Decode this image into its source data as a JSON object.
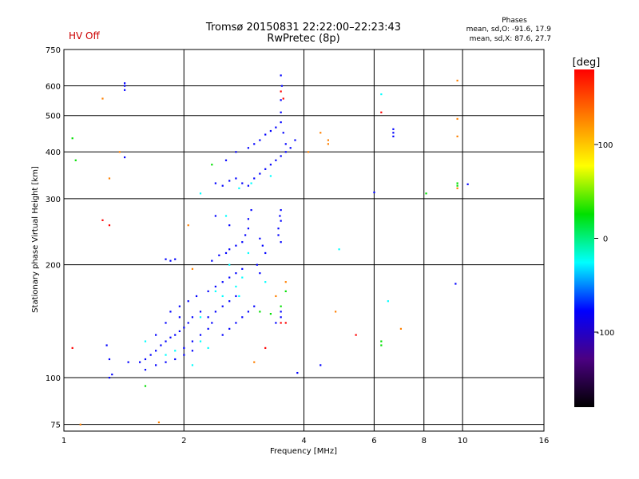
{
  "header": {
    "title_line1": "Tromsø 20150831 22:22:00–22:23:43",
    "title_line2": "RwPretec (8p)",
    "hv_status": "HV Off",
    "stats_title": "Phases",
    "stats_o": "mean, sd,O: -91.6, 17.9",
    "stats_x": "mean, sd,X:  87.6, 27.7"
  },
  "chart_data": {
    "type": "scatter",
    "xlabel": "Frequency [MHz]",
    "ylabel": "Stationary phase Virtual Height [km]",
    "xscale": "log",
    "yscale": "log",
    "xlim": [
      1,
      16
    ],
    "ylim": [
      72,
      750
    ],
    "x_ticks": [
      1,
      2,
      4,
      6,
      8,
      10,
      16
    ],
    "y_ticks": [
      75,
      100,
      200,
      300,
      400,
      500,
      600,
      750
    ],
    "grid": true,
    "colorbar": {
      "label": "[deg]",
      "range": [
        -180,
        180
      ],
      "ticks": [
        100,
        0,
        -100
      ],
      "colors": [
        "#ff0000",
        "#ff8000",
        "#ffff00",
        "#00e000",
        "#00ffff",
        "#0000ff",
        "#4b0082",
        "#000000"
      ]
    },
    "series": [
      {
        "points": [
          [
            1.3,
            112
          ],
          [
            1.45,
            110
          ],
          [
            1.55,
            110
          ],
          [
            1.6,
            112
          ],
          [
            1.65,
            115
          ],
          [
            1.7,
            118
          ],
          [
            1.75,
            122
          ],
          [
            1.8,
            125
          ],
          [
            1.85,
            128
          ],
          [
            1.9,
            130
          ],
          [
            1.95,
            133
          ],
          [
            2.0,
            136
          ],
          [
            2.05,
            140
          ],
          [
            2.1,
            145
          ],
          [
            1.6,
            105
          ],
          [
            1.7,
            108
          ],
          [
            1.8,
            110
          ],
          [
            1.9,
            112
          ],
          [
            2.0,
            115
          ],
          [
            2.1,
            118
          ],
          [
            1.85,
            150
          ],
          [
            1.95,
            155
          ],
          [
            2.05,
            160
          ],
          [
            2.15,
            165
          ],
          [
            2.2,
            150
          ],
          [
            2.3,
            145
          ],
          [
            2.4,
            150
          ],
          [
            2.5,
            155
          ],
          [
            2.6,
            160
          ],
          [
            2.7,
            165
          ],
          [
            2.3,
            170
          ],
          [
            2.4,
            175
          ],
          [
            2.5,
            180
          ],
          [
            2.6,
            185
          ],
          [
            2.7,
            190
          ],
          [
            2.8,
            195
          ],
          [
            2.5,
            130
          ],
          [
            2.6,
            135
          ],
          [
            2.7,
            140
          ],
          [
            2.8,
            145
          ],
          [
            2.9,
            150
          ],
          [
            3.0,
            155
          ],
          [
            1.7,
            130
          ],
          [
            1.8,
            140
          ],
          [
            1.95,
            145
          ],
          [
            2.0,
            120
          ],
          [
            2.1,
            125
          ],
          [
            2.2,
            130
          ],
          [
            2.3,
            135
          ],
          [
            2.35,
            140
          ],
          [
            1.8,
            207
          ],
          [
            1.85,
            205
          ],
          [
            1.9,
            207
          ],
          [
            2.35,
            205
          ],
          [
            2.45,
            212
          ],
          [
            2.55,
            215
          ],
          [
            2.6,
            220
          ],
          [
            2.7,
            225
          ],
          [
            2.8,
            230
          ],
          [
            2.85,
            240
          ],
          [
            2.9,
            250
          ],
          [
            2.9,
            265
          ],
          [
            2.95,
            280
          ],
          [
            3.1,
            235
          ],
          [
            3.15,
            225
          ],
          [
            3.2,
            215
          ],
          [
            2.4,
            270
          ],
          [
            2.6,
            255
          ],
          [
            3.05,
            200
          ],
          [
            3.1,
            190
          ],
          [
            2.4,
            330
          ],
          [
            2.5,
            325
          ],
          [
            2.6,
            335
          ],
          [
            2.7,
            340
          ],
          [
            2.8,
            330
          ],
          [
            2.9,
            325
          ],
          [
            3.0,
            340
          ],
          [
            3.1,
            350
          ],
          [
            3.2,
            360
          ],
          [
            3.3,
            370
          ],
          [
            3.4,
            380
          ],
          [
            3.5,
            390
          ],
          [
            3.6,
            400
          ],
          [
            3.6,
            420
          ],
          [
            3.55,
            450
          ],
          [
            3.5,
            480
          ],
          [
            3.5,
            510
          ],
          [
            3.5,
            550
          ],
          [
            3.52,
            600
          ],
          [
            3.5,
            640
          ],
          [
            2.55,
            380
          ],
          [
            2.7,
            400
          ],
          [
            2.9,
            410
          ],
          [
            3.0,
            420
          ],
          [
            3.1,
            430
          ],
          [
            3.2,
            445
          ],
          [
            3.3,
            455
          ],
          [
            3.4,
            465
          ],
          [
            3.7,
            410
          ],
          [
            3.8,
            430
          ],
          [
            3.45,
            250
          ],
          [
            3.5,
            262
          ],
          [
            3.48,
            270
          ],
          [
            3.5,
            280
          ],
          [
            3.45,
            240
          ],
          [
            3.5,
            230
          ],
          [
            3.85,
            103
          ],
          [
            1.42,
            585
          ],
          [
            1.42,
            600
          ],
          [
            1.42,
            610
          ],
          [
            1.42,
            387
          ],
          [
            1.28,
            122
          ],
          [
            1.32,
            102
          ],
          [
            3.5,
            150
          ],
          [
            3.5,
            145
          ],
          [
            3.4,
            140
          ],
          [
            6.7,
            440
          ],
          [
            6.7,
            450
          ],
          [
            6.7,
            460
          ],
          [
            6.0,
            312
          ],
          [
            10.3,
            328
          ],
          [
            9.6,
            178
          ],
          [
            4.4,
            108
          ],
          [
            1.3,
            100
          ]
        ],
        "phase": -100
      },
      {
        "points": [
          [
            1.8,
            115
          ],
          [
            1.9,
            118
          ],
          [
            2.2,
            125
          ],
          [
            2.5,
            165
          ],
          [
            2.7,
            175
          ],
          [
            2.8,
            185
          ],
          [
            2.6,
            200
          ],
          [
            2.9,
            215
          ],
          [
            3.2,
            180
          ],
          [
            2.2,
            145
          ],
          [
            2.3,
            120
          ],
          [
            2.1,
            108
          ],
          [
            2.4,
            170
          ],
          [
            2.75,
            165
          ],
          [
            6.25,
            570
          ],
          [
            6.5,
            160
          ],
          [
            4.9,
            220
          ],
          [
            2.75,
            320
          ],
          [
            2.95,
            330
          ],
          [
            3.3,
            345
          ],
          [
            2.55,
            270
          ],
          [
            2.2,
            310
          ],
          [
            1.6,
            125
          ]
        ],
        "phase": -30
      },
      {
        "points": [
          [
            3.1,
            150
          ],
          [
            3.3,
            148
          ],
          [
            3.5,
            155
          ],
          [
            2.35,
            370
          ],
          [
            3.6,
            170
          ],
          [
            6.25,
            125
          ],
          [
            6.25,
            122
          ],
          [
            8.1,
            310
          ],
          [
            9.7,
            330
          ],
          [
            9.7,
            325
          ],
          [
            1.05,
            435
          ],
          [
            1.07,
            380
          ],
          [
            1.6,
            95
          ]
        ],
        "phase": 40
      },
      {
        "points": [
          [
            1.25,
            555
          ],
          [
            1.38,
            400
          ],
          [
            1.3,
            340
          ],
          [
            4.1,
            400
          ],
          [
            4.4,
            450
          ],
          [
            4.6,
            430
          ],
          [
            4.6,
            420
          ],
          [
            9.7,
            490
          ],
          [
            9.7,
            440
          ],
          [
            9.7,
            320
          ],
          [
            9.7,
            620
          ],
          [
            7.0,
            135
          ],
          [
            4.8,
            150
          ],
          [
            3.6,
            180
          ],
          [
            3.4,
            165
          ],
          [
            2.05,
            255
          ],
          [
            2.1,
            195
          ],
          [
            3.0,
            110
          ],
          [
            1.73,
            76
          ],
          [
            1.1,
            75
          ]
        ],
        "phase": 110
      },
      {
        "points": [
          [
            1.3,
            255
          ],
          [
            1.05,
            120
          ],
          [
            3.5,
            140
          ],
          [
            3.6,
            140
          ],
          [
            5.4,
            130
          ],
          [
            3.2,
            120
          ],
          [
            6.25,
            510
          ],
          [
            3.5,
            580
          ],
          [
            1.25,
            263
          ],
          [
            3.55,
            555
          ]
        ],
        "phase": 160
      }
    ]
  }
}
